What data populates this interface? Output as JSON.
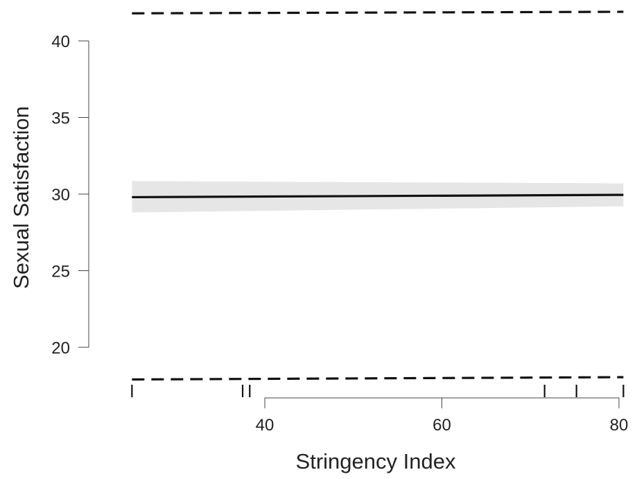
{
  "chart_data": {
    "type": "line",
    "title": "",
    "xlabel": "Stringency Index",
    "ylabel": "Sexual Satisfaction",
    "xlim": [
      22,
      81
    ],
    "ylim": [
      17.5,
      43
    ],
    "x_ticks": [
      40,
      60,
      80
    ],
    "y_ticks": [
      20,
      25,
      30,
      35,
      40
    ],
    "x_tick_labels": [
      "40",
      "60",
      "80"
    ],
    "y_tick_labels": [
      "20",
      "25",
      "30",
      "35",
      "40"
    ],
    "grid": false,
    "legend": "none",
    "series": [
      {
        "x": [
          25,
          80.5
        ],
        "y": [
          29.8,
          29.95
        ],
        "ci_lower": [
          28.8,
          29.2
        ],
        "ci_upper": [
          30.85,
          30.7
        ],
        "color": "#111111",
        "band_color": "#e6e6e6"
      }
    ],
    "prediction_interval": {
      "x": [
        25,
        80.5
      ],
      "upper": [
        41.8,
        41.9
      ],
      "lower": [
        17.9,
        18.05
      ],
      "style": "dashed"
    },
    "rug": [
      25,
      37.5,
      38.3,
      71.6,
      75.2,
      80.5
    ]
  }
}
